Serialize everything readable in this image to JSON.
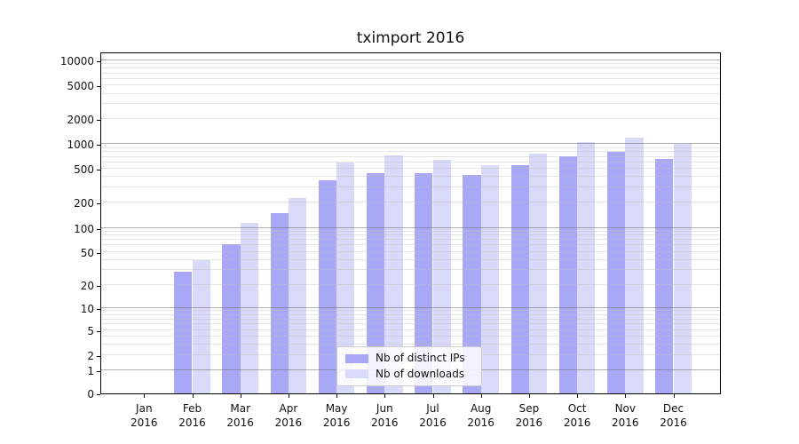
{
  "chart_data": {
    "type": "bar",
    "title": "tximport 2016",
    "categories": [
      "Jan",
      "Feb",
      "Mar",
      "Apr",
      "May",
      "Jun",
      "Jul",
      "Aug",
      "Sep",
      "Oct",
      "Nov",
      "Dec"
    ],
    "x_second_line": "2016",
    "series": [
      {
        "name": "Nb of distinct IPs",
        "color": "#a8a8f6",
        "values": [
          0,
          29,
          63,
          149,
          370,
          450,
          445,
          425,
          560,
          710,
          810,
          660
        ]
      },
      {
        "name": "Nb of downloads",
        "color": "#d9d9f9",
        "values": [
          0,
          40,
          115,
          225,
          595,
          735,
          645,
          555,
          770,
          1055,
          1185,
          1015
        ]
      }
    ],
    "yscale": "symlog",
    "yticks": [
      0,
      1,
      2,
      5,
      10,
      20,
      50,
      100,
      200,
      500,
      1000,
      2000,
      5000,
      10000
    ],
    "ylim": [
      0,
      12000
    ],
    "grid": "horizontal, major and minor, drawn above bars",
    "legend_position": "lower center"
  }
}
